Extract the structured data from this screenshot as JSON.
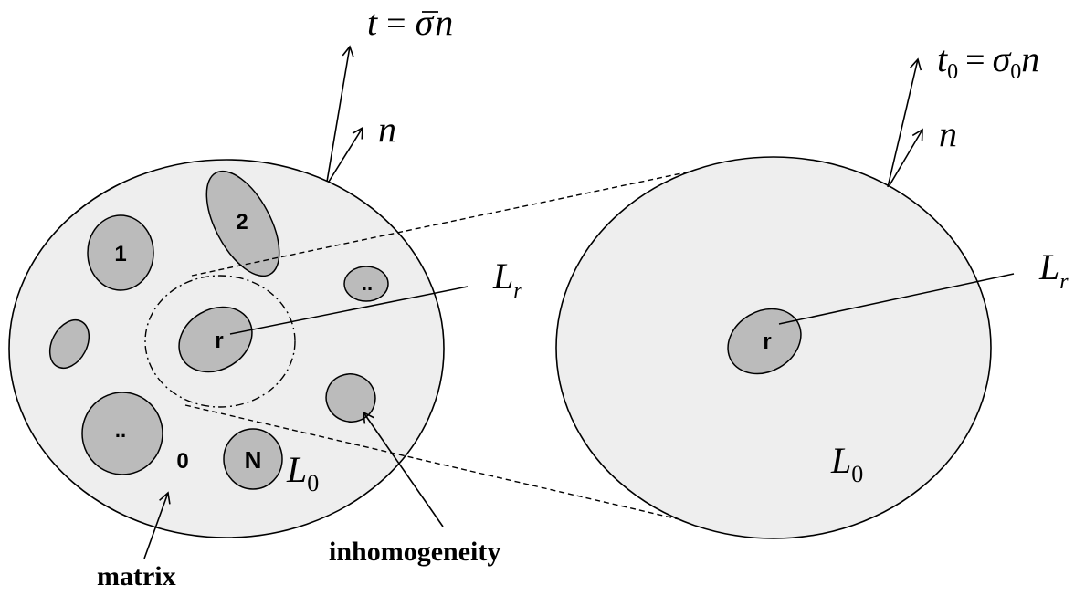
{
  "colors": {
    "body_fill": "#eeeeee",
    "inclusion_fill": "#bbbbbb",
    "stroke": "#000000",
    "background": "#ffffff"
  },
  "left": {
    "inclusions": {
      "one": "1",
      "two": "2",
      "dots_small": "..",
      "r": "r",
      "dots_large": "..",
      "zero": "0",
      "n_label": "N"
    },
    "modulus_letter": "L",
    "modulus_sub": "0",
    "inclusion_modulus_letter": "L",
    "inclusion_modulus_sub": "r",
    "traction": {
      "lhs": "t",
      "eq": "=",
      "sigma": "σ",
      "n": "n"
    },
    "normal": "n",
    "matrix_label": "matrix",
    "inhomogeneity_label": "inhomogeneity"
  },
  "right": {
    "inclusion_r": "r",
    "modulus_letter": "L",
    "modulus_sub": "0",
    "inclusion_modulus_letter": "L",
    "inclusion_modulus_sub": "r",
    "traction": {
      "lhs": "t",
      "lhs_sub": "0",
      "eq": "=",
      "sigma": "σ",
      "sigma_sub": "0",
      "n": "n"
    },
    "normal": "n"
  }
}
